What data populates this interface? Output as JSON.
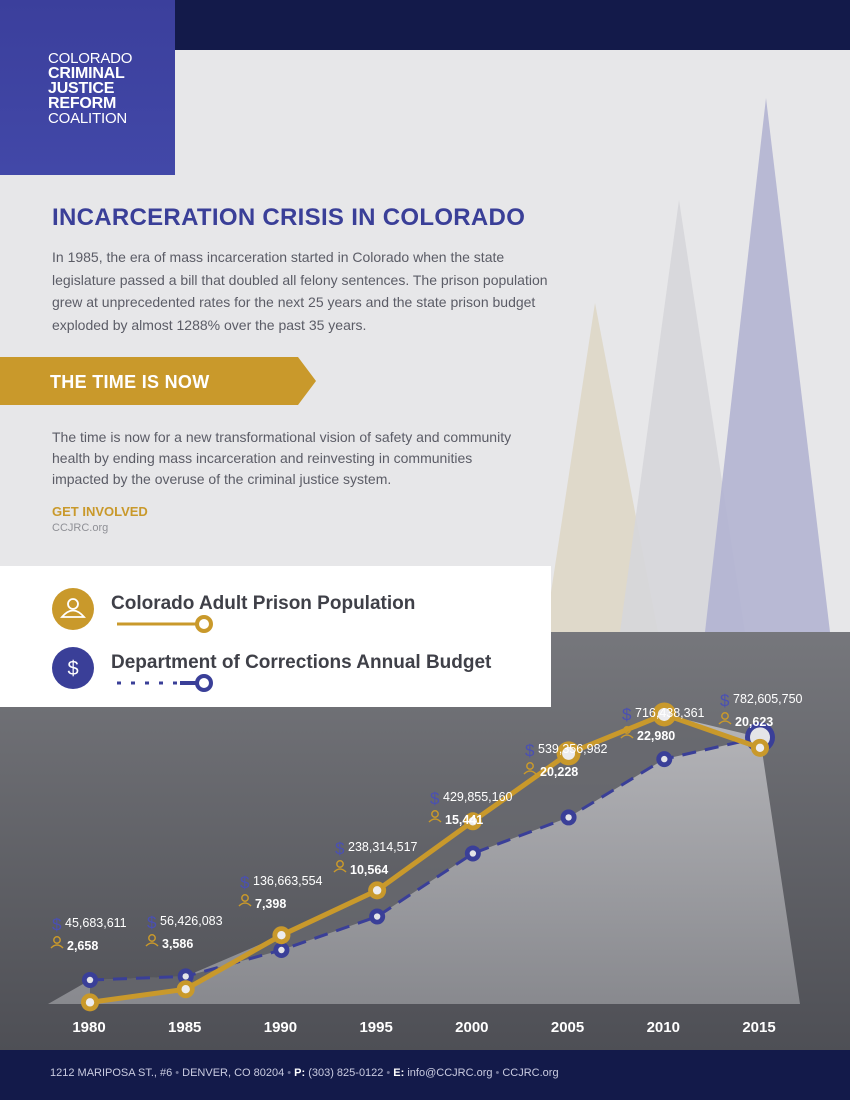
{
  "logo": {
    "line1": "COLORADO",
    "line2": "CRIMINAL",
    "line3": "JUSTICE",
    "line4": "REFORM",
    "line5": "COALITION"
  },
  "intro": {
    "title": "INCARCERATION CRISIS IN COLORADO",
    "paragraph": "In 1985, the era of mass incarceration started in Colorado when the state legislature passed a bill that doubled all felony sentences. The prison population grew at unprecedented rates for the next 25 years and the state prison budget exploded by almost 1288% over the past 35 years."
  },
  "ribbon": {
    "label": "THE TIME IS NOW"
  },
  "body": {
    "paragraph": "The time is now for a new transformational vision of safety and community health by ending mass incarceration and reinvesting in communities impacted by the overuse of the criminal justice system.",
    "cta_label": "GET INVOLVED",
    "cta_site": "CCJRC.org"
  },
  "colors": {
    "gold": "#c9992b",
    "blue": "#3a3f98",
    "navy": "#131a4a",
    "chart_bg": "#77787d"
  },
  "chart_data": {
    "type": "line",
    "categories": [
      "1980",
      "1985",
      "1990",
      "1995",
      "2000",
      "2005",
      "2010",
      "2015"
    ],
    "series": [
      {
        "name": "Colorado Adult Prison Population",
        "icon": "person-icon",
        "color": "#c9992b",
        "values": [
          2658,
          3586,
          7398,
          10564,
          15441,
          20228,
          22980,
          20623
        ],
        "labels": [
          "2,658",
          "3,586",
          "7,398",
          "10,564",
          "15,441",
          "20,228",
          "22,980",
          "20,623"
        ]
      },
      {
        "name": "Department of Corrections Annual Budget",
        "icon": "dollar-icon",
        "color": "#3a3f98",
        "values": [
          45683611,
          56426083,
          136663554,
          238314517,
          429855160,
          539356982,
          716438361,
          782605750
        ],
        "labels": [
          "45,683,611",
          "56,426,083",
          "136,663,554",
          "238,314,517",
          "429,855,160",
          "539,356,982",
          "716,438,361",
          "782,605,750"
        ]
      }
    ],
    "legend_position": "top-left",
    "grid": false
  },
  "footer": {
    "address": "1212 MARIPOSA ST., #6",
    "city": "DENVER, CO 80204",
    "phone_label": "P:",
    "phone": "(303) 825-0122",
    "email_label": "E:",
    "email": "info@CCJRC.org",
    "site": "CCJRC.org"
  }
}
